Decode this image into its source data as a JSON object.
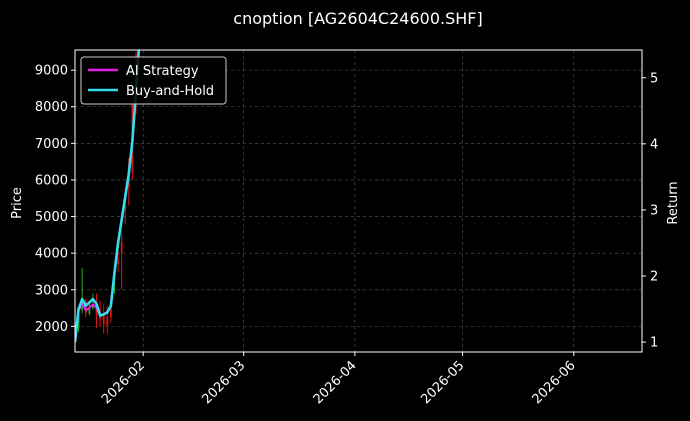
{
  "chart_data": {
    "type": "candlestick+line",
    "title": "cnoption [AG2604C24600.SHF]",
    "xlabel": "",
    "ylabel_left": "Price",
    "ylabel_right": "Return",
    "x_ticks": [
      "2026-02",
      "2026-03",
      "2026-04",
      "2026-05",
      "2026-06"
    ],
    "x_tick_dates": [
      "2026-02-01",
      "2026-03-01",
      "2026-04-01",
      "2026-05-01",
      "2026-06-01"
    ],
    "x_range": [
      "2026-01-13",
      "2026-06-20"
    ],
    "y_left_ticks": [
      2000,
      3000,
      4000,
      5000,
      6000,
      7000,
      8000,
      9000
    ],
    "y_left_range": [
      1300,
      9550
    ],
    "y_right_ticks": [
      1,
      2,
      3,
      4,
      5
    ],
    "y_right_range": [
      0.85,
      5.42
    ],
    "grid": true,
    "legend_position": "top-left",
    "colors": {
      "background": "#000000",
      "up": "#22aa22",
      "down": "#e01414",
      "ai_strategy": "#e020e0",
      "buy_and_hold": "#33ddee",
      "grid": "#5a5a5a"
    },
    "series": [
      {
        "name": "AI Strategy",
        "x": [
          "2026-01-13",
          "2026-01-14",
          "2026-01-15",
          "2026-01-16",
          "2026-01-17",
          "2026-01-18",
          "2026-01-19",
          "2026-01-20",
          "2026-01-21",
          "2026-01-22",
          "2026-01-23",
          "2026-01-24",
          "2026-01-25",
          "2026-01-26",
          "2026-01-27",
          "2026-01-28",
          "2026-01-29",
          "2026-01-30",
          "2026-01-31"
        ],
        "values": [
          1.0,
          1.48,
          1.58,
          1.48,
          1.52,
          1.57,
          1.52,
          1.4,
          1.42,
          1.46,
          1.55,
          2.05,
          2.5,
          2.85,
          3.2,
          3.55,
          4.05,
          4.8,
          5.6
        ]
      },
      {
        "name": "Buy-and-Hold",
        "x": [
          "2026-01-13",
          "2026-01-14",
          "2026-01-15",
          "2026-01-16",
          "2026-01-17",
          "2026-01-18",
          "2026-01-19",
          "2026-01-20",
          "2026-01-21",
          "2026-01-22",
          "2026-01-23",
          "2026-01-24",
          "2026-01-25",
          "2026-01-26",
          "2026-01-27",
          "2026-01-28",
          "2026-01-29",
          "2026-01-30",
          "2026-01-31"
        ],
        "values": [
          1.0,
          1.5,
          1.65,
          1.55,
          1.6,
          1.65,
          1.58,
          1.4,
          1.42,
          1.45,
          1.55,
          2.05,
          2.5,
          2.85,
          3.2,
          3.55,
          4.05,
          4.8,
          5.6
        ]
      }
    ],
    "candles": [
      {
        "date": "2026-01-13",
        "open": 1600,
        "high": 1950,
        "low": 1550,
        "close": 1900
      },
      {
        "date": "2026-01-14",
        "open": 1950,
        "high": 2450,
        "low": 1850,
        "close": 2400
      },
      {
        "date": "2026-01-15",
        "open": 2450,
        "high": 3600,
        "low": 2350,
        "close": 2700
      },
      {
        "date": "2026-01-16",
        "open": 2700,
        "high": 2750,
        "low": 2250,
        "close": 2350
      },
      {
        "date": "2026-01-17",
        "open": 2350,
        "high": 2650,
        "low": 2300,
        "close": 2500
      },
      {
        "date": "2026-01-18",
        "open": 2500,
        "high": 2900,
        "low": 2450,
        "close": 2550
      },
      {
        "date": "2026-01-19",
        "open": 2650,
        "high": 2900,
        "low": 1950,
        "close": 2300
      },
      {
        "date": "2026-01-20",
        "open": 2400,
        "high": 2700,
        "low": 2000,
        "close": 2200
      },
      {
        "date": "2026-01-21",
        "open": 2300,
        "high": 2600,
        "low": 1800,
        "close": 2050
      },
      {
        "date": "2026-01-22",
        "open": 2250,
        "high": 2550,
        "low": 1800,
        "close": 2000
      },
      {
        "date": "2026-01-23",
        "open": 2750,
        "high": 2850,
        "low": 2100,
        "close": 2250
      },
      {
        "date": "2026-01-24",
        "open": 3300,
        "high": 3500,
        "low": 2900,
        "close": 3300
      },
      {
        "date": "2026-01-25",
        "open": 3800,
        "high": 4100,
        "low": 3500,
        "close": 3700
      },
      {
        "date": "2026-01-26",
        "open": 4300,
        "high": 4600,
        "low": 3000,
        "close": 4000
      },
      {
        "date": "2026-01-27",
        "open": 5300,
        "high": 5500,
        "low": 4800,
        "close": 5200
      },
      {
        "date": "2026-01-28",
        "open": 6400,
        "high": 6600,
        "low": 5300,
        "close": 5800
      },
      {
        "date": "2026-01-29",
        "open": 8200,
        "high": 8600,
        "low": 6000,
        "close": 6200
      },
      {
        "date": "2026-01-30",
        "open": 9400,
        "high": 9500,
        "low": 7800,
        "close": 8400
      }
    ]
  }
}
